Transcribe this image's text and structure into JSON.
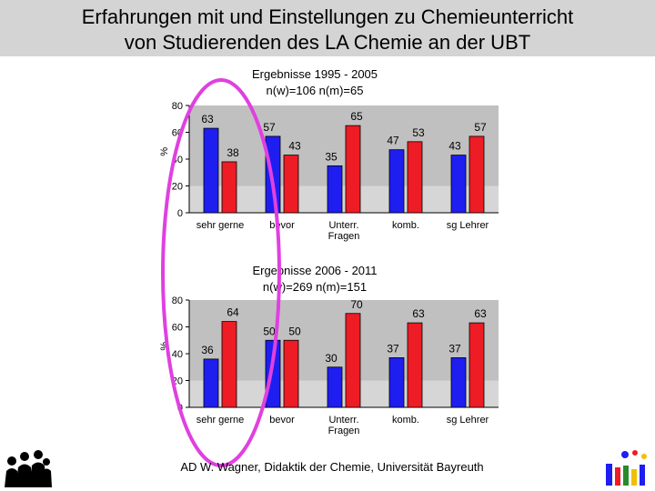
{
  "title": {
    "line1": "Erfahrungen mit und Einstellungen zu Chemieunterricht",
    "line2": "von Studierenden des LA Chemie an der UBT"
  },
  "chart1_caption": {
    "line1": "Ergebnisse 1995 - 2005",
    "line2": "n(w)=106   n(m)=65"
  },
  "chart2_caption": {
    "line1": "Ergebnisse 2006 - 2011",
    "line2": "n(w)=269       n(m)=151"
  },
  "footer": "AD W. Wagner, Didaktik der Chemie, Universität Bayreuth",
  "colors": {
    "female": "#1e1ef0",
    "male": "#ee1c24",
    "plot_bg": "#c0c0c0",
    "highlight": "#e040e0",
    "title_bg": "#d4d4d4"
  },
  "icons": [
    "people-silhouette-logo",
    "didaktik-logo"
  ],
  "chart_data": [
    {
      "type": "bar",
      "title": "Ergebnisse 1995 - 2005",
      "subtitle": "n(w)=106   n(m)=65",
      "ylabel": "%",
      "ylim": [
        0,
        80
      ],
      "yticks": [
        0,
        20,
        40,
        60,
        80
      ],
      "categories": [
        [
          "sehr gerne"
        ],
        [
          "bevor"
        ],
        [
          "Unterr.",
          "Fragen"
        ],
        [
          "komb."
        ],
        [
          "sg Lehrer"
        ]
      ],
      "series": [
        {
          "values": [
            63,
            57,
            35,
            47,
            43
          ],
          "color": "#1e1ef0"
        },
        {
          "values": [
            38,
            43,
            65,
            53,
            57
          ],
          "color": "#ee1c24"
        }
      ],
      "grid": false
    },
    {
      "type": "bar",
      "title": "Ergebnisse 2006 - 2011",
      "subtitle": "n(w)=269       n(m)=151",
      "ylabel": "%",
      "ylim": [
        0,
        80
      ],
      "yticks": [
        0,
        20,
        40,
        60,
        80
      ],
      "categories": [
        [
          "sehr gerne"
        ],
        [
          "bevor"
        ],
        [
          "Unterr.",
          "Fragen"
        ],
        [
          "komb."
        ],
        [
          "sg Lehrer"
        ]
      ],
      "series": [
        {
          "values": [
            36,
            50,
            30,
            37,
            37
          ],
          "color": "#1e1ef0"
        },
        {
          "values": [
            64,
            50,
            70,
            63,
            63
          ],
          "color": "#ee1c24"
        }
      ],
      "grid": false
    }
  ]
}
